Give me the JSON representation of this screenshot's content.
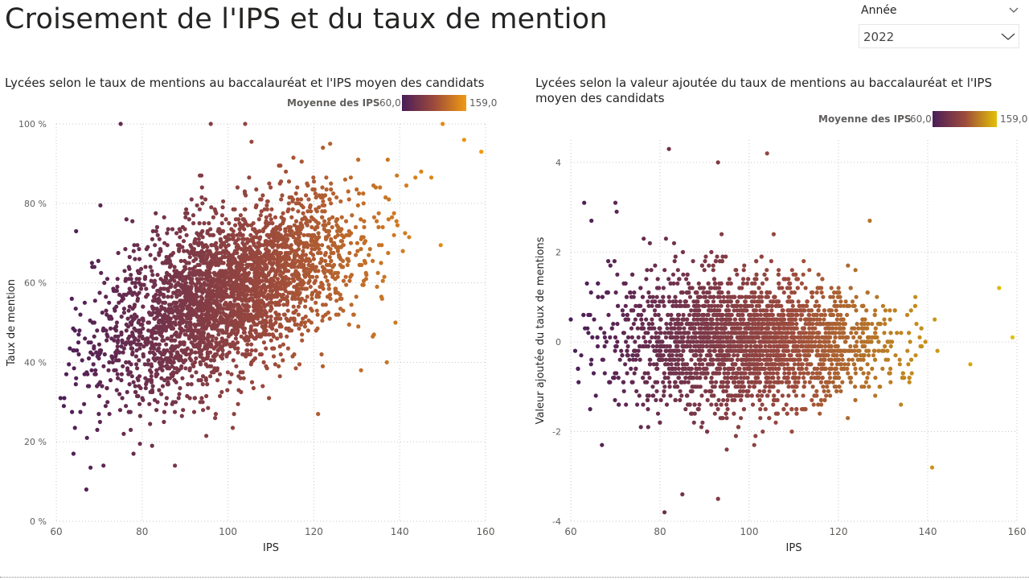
{
  "page": {
    "title": "Croisement de l'IPS et du taux de mention"
  },
  "slicer": {
    "label": "Année",
    "value": "2022",
    "icon": "chevron-down-icon"
  },
  "colors": {
    "low": "#4a1d59",
    "mid": "#9c4a3c",
    "high_left": "#f09a11",
    "high_right": "#e3c006",
    "grid": "#c8c6c4",
    "text": "#605e5c"
  },
  "left_visual": {
    "title": "Lycées selon le taux de mentions au baccalauréat et l'IPS moyen des candidats",
    "legend": {
      "title": "Moyenne des IPS",
      "min": "60,0",
      "max": "159,0"
    }
  },
  "right_visual": {
    "title": "Lycées selon la valeur ajoutée du taux de mentions au baccalauréat et l'IPS moyen des candidats",
    "legend": {
      "title": "Moyenne des IPS",
      "min": "60,0",
      "max": "159,0"
    }
  },
  "chart_data": [
    {
      "type": "scatter",
      "xlabel": "IPS",
      "ylabel": "Taux de mention",
      "xlim": [
        60,
        160
      ],
      "ylim": [
        0,
        100
      ],
      "x_ticks": [
        "60",
        "80",
        "100",
        "120",
        "140",
        "160"
      ],
      "y_ticks": [
        "0 %",
        "20 %",
        "40 %",
        "60 %",
        "80 %",
        "100 %"
      ],
      "grid": true,
      "color_by": "IPS",
      "trend": {
        "slope": 0.45,
        "intercept": 12,
        "spread": 10
      },
      "sample_points": [
        {
          "x": 75,
          "y": 100
        },
        {
          "x": 96,
          "y": 100
        },
        {
          "x": 104,
          "y": 100
        },
        {
          "x": 67,
          "y": 8
        },
        {
          "x": 61,
          "y": 31
        },
        {
          "x": 64,
          "y": 17
        },
        {
          "x": 71,
          "y": 14
        },
        {
          "x": 78,
          "y": 17
        },
        {
          "x": 121,
          "y": 27
        },
        {
          "x": 131,
          "y": 38
        },
        {
          "x": 137,
          "y": 40
        },
        {
          "x": 139,
          "y": 50
        },
        {
          "x": 159,
          "y": 93
        },
        {
          "x": 150,
          "y": 100
        },
        {
          "x": 155,
          "y": 96
        },
        {
          "x": 145,
          "y": 88
        },
        {
          "x": 85,
          "y": 50
        },
        {
          "x": 110,
          "y": 60
        },
        {
          "x": 120,
          "y": 66
        },
        {
          "x": 95,
          "y": 55
        }
      ],
      "n_points": 3200
    },
    {
      "type": "scatter",
      "xlabel": "IPS",
      "ylabel": "Valeur ajoutée du taux de mentions",
      "xlim": [
        60,
        160
      ],
      "ylim": [
        -4,
        4.5
      ],
      "x_ticks": [
        "60",
        "80",
        "100",
        "120",
        "140",
        "160"
      ],
      "y_ticks": [
        "-4",
        "-2",
        "0",
        "2",
        "4"
      ],
      "grid": true,
      "color_by": "IPS",
      "trend": {
        "slope": 0,
        "intercept": 0,
        "spread": 0.85
      },
      "sample_points": [
        {
          "x": 82,
          "y": 4.3
        },
        {
          "x": 104,
          "y": 4.2
        },
        {
          "x": 93,
          "y": 4.0
        },
        {
          "x": 63,
          "y": 3.1
        },
        {
          "x": 70,
          "y": 3.1
        },
        {
          "x": 81,
          "y": -3.8
        },
        {
          "x": 93,
          "y": -3.5
        },
        {
          "x": 141,
          "y": -2.8
        },
        {
          "x": 159,
          "y": 0.1
        },
        {
          "x": 156,
          "y": 1.2
        },
        {
          "x": 60,
          "y": 0.5
        },
        {
          "x": 61,
          "y": -0.2
        },
        {
          "x": 67,
          "y": -2.3
        },
        {
          "x": 85,
          "y": -3.4
        },
        {
          "x": 127,
          "y": 2.7
        }
      ],
      "n_points": 3200
    }
  ]
}
